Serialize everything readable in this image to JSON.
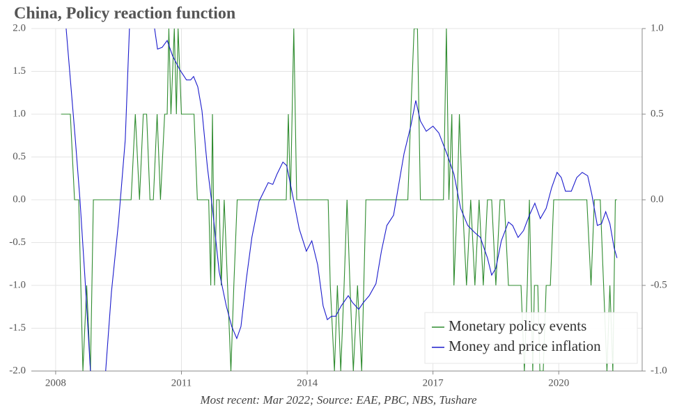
{
  "chart_data": {
    "type": "line",
    "title": "China, Policy reaction function",
    "caption": "Most recent: Mar 2022; Source: EAE, PBC, NBS, Tushare",
    "xlim": [
      2007.42,
      2021.99
    ],
    "xticks": [
      2008,
      2011,
      2014,
      2017,
      2020
    ],
    "ylim": [
      -2,
      2
    ],
    "yticks": [
      {
        "value": 2,
        "label": "2.0"
      },
      {
        "value": 1.5,
        "label": "1.5"
      },
      {
        "value": 1,
        "label": "1.0"
      },
      {
        "value": 0.5,
        "label": "0.5"
      },
      {
        "value": 0,
        "label": "0.0"
      },
      {
        "value": -0.5,
        "label": "-0.5"
      },
      {
        "value": -1,
        "label": "-1.0"
      },
      {
        "value": -1.5,
        "label": "-1.5"
      },
      {
        "value": -2,
        "label": "-2.0"
      }
    ],
    "y2lim": [
      -1,
      1
    ],
    "y2ticks": [
      {
        "value": 1,
        "label": "1.0"
      },
      {
        "value": 0.5,
        "label": "0.5"
      },
      {
        "value": 0,
        "label": "0.0"
      },
      {
        "value": -0.5,
        "label": "-0.5"
      },
      {
        "value": -1,
        "label": "-1.0"
      }
    ],
    "grid": true,
    "legend": "lower right",
    "series": [
      {
        "name": "Monetary policy events",
        "color": "#2e8b2e",
        "x": [
          2008.13,
          2008.35,
          2008.45,
          2008.55,
          2008.65,
          2008.74,
          2008.83,
          2008.9,
          2009.8,
          2009.9,
          2010.0,
          2010.09,
          2010.17,
          2010.25,
          2010.33,
          2010.42,
          2010.5,
          2010.6,
          2010.66,
          2010.7,
          2010.75,
          2010.83,
          2010.88,
          2010.92,
          2011.0,
          2011.05,
          2011.3,
          2011.38,
          2011.65,
          2011.7,
          2011.74,
          2011.79,
          2011.84,
          2011.9,
          2011.95,
          2012.02,
          2012.1,
          2012.18,
          2012.25,
          2012.33,
          2012.4,
          2013.5,
          2013.55,
          2013.6,
          2013.68,
          2013.75,
          2014.5,
          2014.55,
          2014.65,
          2014.72,
          2014.8,
          2014.88,
          2014.95,
          2015.02,
          2015.1,
          2015.2,
          2015.3,
          2015.4,
          2016.4,
          2016.47,
          2016.55,
          2016.63,
          2016.7,
          2017.25,
          2017.32,
          2017.38,
          2017.45,
          2017.5,
          2017.58,
          2017.63,
          2017.7,
          2017.8,
          2017.9,
          2018.0,
          2018.1,
          2018.2,
          2018.3,
          2018.4,
          2018.5,
          2018.6,
          2018.7,
          2018.8,
          2019.0,
          2019.1,
          2019.18,
          2019.25,
          2019.3,
          2019.38,
          2019.42,
          2019.5,
          2019.55,
          2019.63,
          2019.7,
          2019.8,
          2019.88,
          2020.67,
          2020.77,
          2020.85,
          2020.99,
          2021.15,
          2021.22,
          2021.29,
          2021.35,
          2021.39
        ],
        "values": [
          1,
          1,
          0,
          0,
          -2,
          -1,
          -2,
          0,
          0,
          1,
          0,
          1,
          1,
          0,
          0,
          1,
          0,
          1,
          1,
          2,
          1,
          2,
          1,
          2,
          1,
          1,
          1,
          0,
          0,
          -1,
          1,
          -1,
          0,
          0,
          -1,
          0,
          -1,
          -2,
          -1,
          0,
          0,
          0,
          1,
          0,
          2,
          0,
          0,
          -1,
          -2,
          -1,
          -2,
          -1,
          0,
          -1,
          -2,
          -1,
          -2,
          0,
          0,
          1,
          2,
          2,
          0,
          0,
          2,
          0,
          1,
          -1,
          0,
          1,
          0,
          -1,
          0,
          -1,
          0,
          -1,
          0,
          0,
          -1,
          0,
          0,
          -1,
          -1,
          -1,
          -2,
          -1,
          0,
          -2,
          -1,
          -1,
          -2,
          -2,
          -1,
          -1,
          0,
          0,
          -1,
          0,
          0,
          -2,
          -1,
          -2,
          0,
          0
        ]
      },
      {
        "name": "Money and price inflation",
        "color": "#1a1acc",
        "axis": "y2",
        "x": [
          2008.25,
          2008.47,
          2008.58,
          2008.7,
          2008.83,
          2008.88,
          2009.16,
          2009.33,
          2009.5,
          2009.66,
          2009.76,
          2009.83,
          2010.24,
          2010.36,
          2010.43,
          2010.54,
          2010.66,
          2010.79,
          2010.96,
          2011.12,
          2011.22,
          2011.29,
          2011.39,
          2011.49,
          2011.62,
          2011.74,
          2011.9,
          2012.07,
          2012.2,
          2012.32,
          2012.42,
          2012.55,
          2012.68,
          2012.85,
          2013.07,
          2013.18,
          2013.28,
          2013.42,
          2013.51,
          2013.65,
          2013.81,
          2013.98,
          2014.11,
          2014.25,
          2014.38,
          2014.48,
          2014.58,
          2014.68,
          2014.81,
          2014.98,
          2015.08,
          2015.23,
          2015.34,
          2015.48,
          2015.64,
          2015.77,
          2015.9,
          2016.06,
          2016.17,
          2016.31,
          2016.47,
          2016.59,
          2016.7,
          2016.84,
          2017.0,
          2017.14,
          2017.33,
          2017.5,
          2017.66,
          2017.83,
          2017.99,
          2018.13,
          2018.3,
          2018.4,
          2018.5,
          2018.63,
          2018.8,
          2018.9,
          2019.03,
          2019.16,
          2019.3,
          2019.43,
          2019.56,
          2019.7,
          2019.83,
          2019.96,
          2020.06,
          2020.16,
          2020.3,
          2020.43,
          2020.56,
          2020.69,
          2020.79,
          2020.92,
          2021.02,
          2021.12,
          2021.22,
          2021.32,
          2021.39
        ],
        "values": [
          1.0,
          0.35,
          0.0,
          -0.46,
          -1.0,
          -1.27,
          -1.11,
          -0.54,
          -0.13,
          0.35,
          1.0,
          1.25,
          1.25,
          1.0,
          0.88,
          0.89,
          0.93,
          0.84,
          0.76,
          0.7,
          0.7,
          0.72,
          0.66,
          0.52,
          0.19,
          -0.05,
          -0.42,
          -0.62,
          -0.74,
          -0.81,
          -0.74,
          -0.46,
          -0.22,
          -0.01,
          0.1,
          0.09,
          0.15,
          0.22,
          0.2,
          0.03,
          -0.17,
          -0.3,
          -0.24,
          -0.38,
          -0.62,
          -0.7,
          -0.68,
          -0.68,
          -0.62,
          -0.56,
          -0.6,
          -0.64,
          -0.6,
          -0.56,
          -0.49,
          -0.3,
          -0.15,
          -0.09,
          0.07,
          0.27,
          0.43,
          0.58,
          0.46,
          0.4,
          0.43,
          0.39,
          0.27,
          0.15,
          -0.05,
          -0.15,
          -0.19,
          -0.22,
          -0.34,
          -0.44,
          -0.4,
          -0.24,
          -0.13,
          -0.15,
          -0.22,
          -0.18,
          -0.09,
          -0.02,
          -0.11,
          -0.05,
          0.07,
          0.16,
          0.13,
          0.05,
          0.05,
          0.13,
          0.16,
          0.14,
          0.03,
          -0.15,
          -0.14,
          -0.07,
          -0.14,
          -0.28,
          -0.34
        ]
      }
    ]
  }
}
